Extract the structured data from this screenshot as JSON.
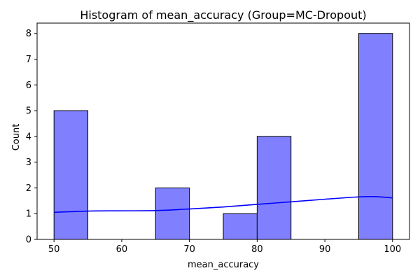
{
  "chart_data": {
    "type": "bar",
    "title": "Histogram of mean_accuracy (Group=MC-Dropout)",
    "xlabel": "mean_accuracy",
    "ylabel": "Count",
    "xlim": [
      47.5,
      102.5
    ],
    "ylim": [
      0,
      8.4
    ],
    "x_ticks": [
      50,
      60,
      70,
      80,
      90,
      100
    ],
    "y_ticks": [
      0,
      1,
      2,
      3,
      4,
      5,
      6,
      7,
      8
    ],
    "bin_edges": [
      50,
      55,
      60,
      65,
      70,
      75,
      80,
      85,
      90,
      95,
      100
    ],
    "counts": [
      5,
      0,
      0,
      2,
      0,
      1,
      4,
      0,
      0,
      8
    ],
    "kde": {
      "x": [
        50,
        55,
        60,
        65,
        70,
        75,
        80,
        85,
        90,
        95,
        97.5,
        100
      ],
      "y": [
        1.05,
        1.1,
        1.11,
        1.12,
        1.18,
        1.26,
        1.36,
        1.46,
        1.56,
        1.65,
        1.66,
        1.61
      ]
    },
    "bar_color": "#8080ff",
    "bar_edge_color": "#000000",
    "kde_color": "#0000ff",
    "grid": false,
    "legend": "none"
  }
}
